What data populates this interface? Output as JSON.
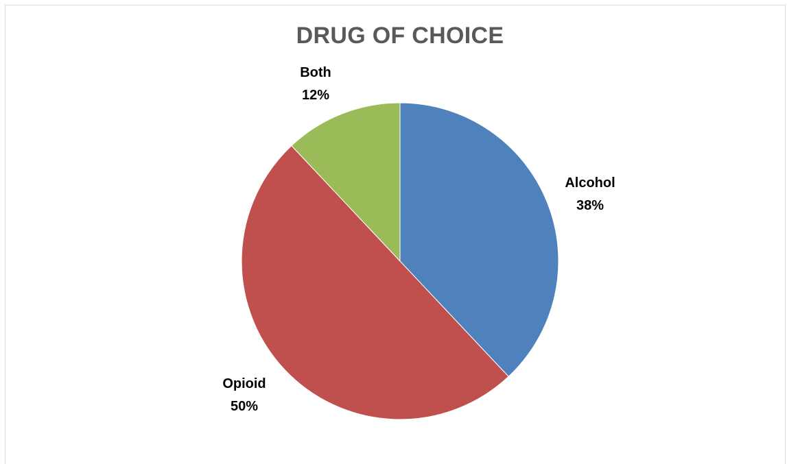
{
  "chart_data": {
    "type": "pie",
    "title": "DRUG OF CHOICE",
    "slices": [
      {
        "label": "Alcohol",
        "value": 38,
        "display": "38%",
        "color": "#4f81bd"
      },
      {
        "label": "Opioid",
        "value": 50,
        "display": "50%",
        "color": "#c0504d"
      },
      {
        "label": "Both",
        "value": 12,
        "display": "12%",
        "color": "#9bbb59"
      }
    ],
    "start_angle": "12 o'clock",
    "direction": "clockwise",
    "legend": "none",
    "data_labels": "category name and percentage, outside end"
  }
}
